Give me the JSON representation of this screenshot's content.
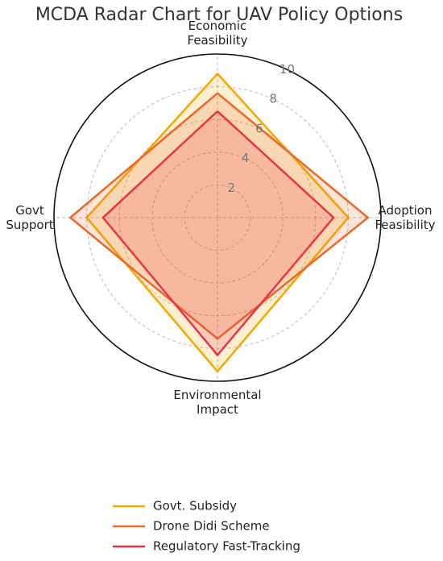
{
  "chart_data": {
    "type": "radar",
    "title": "MCDA Radar Chart for UAV Policy Options",
    "categories": [
      "Economic Feasibility",
      "Adoption Feasibility",
      "Environmental Impact",
      "Govt Support"
    ],
    "rlim": [
      0,
      10
    ],
    "rticks": [
      2,
      4,
      6,
      8,
      10
    ],
    "grid": true,
    "series": [
      {
        "name": "Govt. Subsidy",
        "color": "#f5a800",
        "values": [
          8.8,
          8.0,
          9.4,
          8.0
        ]
      },
      {
        "name": "Drone Didi Scheme",
        "color": "#e8692a",
        "values": [
          7.6,
          9.2,
          7.4,
          9.0
        ]
      },
      {
        "name": "Regulatory Fast-Tracking",
        "color": "#e8334a",
        "values": [
          6.5,
          7.1,
          8.4,
          7.0
        ]
      }
    ]
  }
}
